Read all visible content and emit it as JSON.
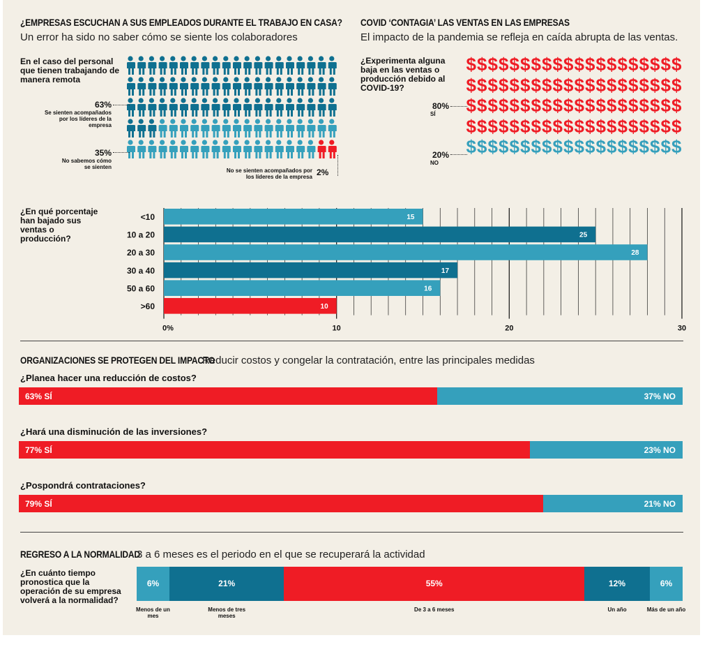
{
  "colors": {
    "dark_teal": "#0f7090",
    "light_teal": "#35a0bc",
    "red": "#ef1c25",
    "bg": "#f3efe6"
  },
  "section1": {
    "title": "¿EMPRESAS ESCUCHAN A SUS EMPLEADOS DURANTE EL TRABAJO EN CASA?",
    "subtitle": "Un error ha sido no saber cómo se siente los colaboradores",
    "question": "En el caso del personal que tienen trabajando de manera remota",
    "pct_yes": "63%",
    "label_yes": "Se sienten acompañados por los líderes de la empresa",
    "pct_unknown": "35%",
    "label_unknown": "No sabemos cómo se sienten",
    "pct_no": "2%",
    "label_no": "No se sienten acompañados por los líderes de la empresa",
    "icon_counts": {
      "dark": 63,
      "light": 35,
      "red": 2
    }
  },
  "section2": {
    "title": "COVID ‘CONTAGIA’ LAS VENTAS EN LAS EMPRESAS",
    "subtitle": "El impacto de la pandemia se refleja en caída abrupta de las ventas.",
    "question": "¿Experimenta alguna baja en las ventas o producción debido al COVID-19?",
    "pct_yes": "80%",
    "label_yes": "SÍ",
    "pct_no": "20%",
    "label_no": "NO",
    "icon_counts": {
      "red": 80,
      "teal": 20
    }
  },
  "chart_data": {
    "type": "bar",
    "orientation": "horizontal",
    "title": "¿En qué porcentaje han bajado sus ventas o producción?",
    "categories": [
      "<10",
      "10 a 20",
      "20 a 30",
      "30 a 40",
      "50 a 60",
      ">60"
    ],
    "values": [
      15,
      25,
      28,
      17,
      16,
      10
    ],
    "value_labels": [
      "15",
      "25",
      "28",
      "17",
      "16",
      "10"
    ],
    "bar_colors": [
      "light_teal",
      "dark_teal",
      "light_teal",
      "dark_teal",
      "light_teal",
      "red"
    ],
    "xlim": [
      0,
      30
    ],
    "xticks": [
      "0%",
      "10",
      "20",
      "30"
    ],
    "grid": true
  },
  "section4": {
    "title": "ORGANIZACIONES SE PROTEGEN DEL IMPACTO",
    "subtitle": "Reducir costos y congelar la contratación, entre las principales medidas",
    "items": [
      {
        "question": "¿Planea hacer una reducción de costos?",
        "yes_pct": 63,
        "yes_label": "63% SÍ",
        "no_label": "37% NO"
      },
      {
        "question": "¿Hará una disminución de las inversiones?",
        "yes_pct": 77,
        "yes_label": "77% SÍ",
        "no_label": "23% NO"
      },
      {
        "question": "¿Pospondrá contrataciones?",
        "yes_pct": 79,
        "yes_label": "79% SÍ",
        "no_label": "21% NO"
      }
    ]
  },
  "section5": {
    "title": "REGRESO A LA NORMALIDAD",
    "subtitle": "3 a 6 meses es el periodo en el que se recuperará la actividad",
    "question": "¿En cuánto tiempo pronostica que la operación de su empresa volverá a la normalidad?",
    "segments": [
      {
        "pct": 6,
        "label": "6%",
        "caption": "Menos de un mes",
        "color": "light_teal"
      },
      {
        "pct": 21,
        "label": "21%",
        "caption": "Menos de tres meses",
        "color": "dark_teal"
      },
      {
        "pct": 55,
        "label": "55%",
        "caption": "De 3 a 6 meses",
        "color": "red"
      },
      {
        "pct": 12,
        "label": "12%",
        "caption": "Un año",
        "color": "dark_teal"
      },
      {
        "pct": 6,
        "label": "6%",
        "caption": "Más de un año",
        "color": "light_teal"
      }
    ]
  }
}
